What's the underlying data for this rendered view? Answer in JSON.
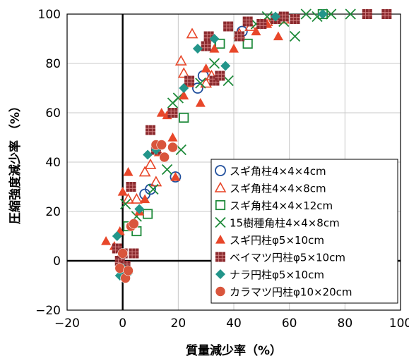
{
  "chart_data": {
    "type": "scatter",
    "xlabel": "質量減少率（%）",
    "ylabel": "圧縮強度減少率 （%）",
    "xlim": [
      -20,
      100
    ],
    "ylim": [
      -20,
      100
    ],
    "xticks": [
      -20,
      0,
      20,
      40,
      60,
      80,
      100
    ],
    "yticks": [
      -20,
      0,
      20,
      40,
      60,
      80,
      100
    ],
    "grid": true,
    "legend_position": "bottom-right",
    "series": [
      {
        "name": "スギ角柱4×4×4cm",
        "marker": "circle-open",
        "color": "#1f4e9c",
        "points": [
          [
            8,
            27
          ],
          [
            10,
            29
          ],
          [
            19,
            34
          ],
          [
            27,
            70
          ],
          [
            29,
            75
          ],
          [
            43,
            93
          ]
        ]
      },
      {
        "name": "スギ角柱4×4×8cm",
        "marker": "triangle-open",
        "color": "#e8472a",
        "points": [
          [
            2,
            25
          ],
          [
            5,
            25
          ],
          [
            8,
            36
          ],
          [
            10,
            39
          ],
          [
            12,
            32
          ],
          [
            21,
            81
          ],
          [
            22,
            76
          ],
          [
            25,
            92
          ],
          [
            30,
            72
          ],
          [
            32,
            75
          ],
          [
            42,
            92
          ],
          [
            46,
            95
          ],
          [
            52,
            97
          ],
          [
            58,
            98
          ]
        ]
      },
      {
        "name": "スギ角柱4×4×12cm",
        "marker": "square-open",
        "color": "#1e8a3a",
        "points": [
          [
            2,
            14
          ],
          [
            5,
            12
          ],
          [
            9,
            19
          ],
          [
            22,
            58
          ],
          [
            35,
            88
          ],
          [
            45,
            88
          ],
          [
            55,
            98
          ],
          [
            72,
            100
          ]
        ]
      },
      {
        "name": "15樹種角柱4×4×8cm",
        "marker": "x",
        "color": "#1e8a3a",
        "points": [
          [
            1,
            23
          ],
          [
            5,
            18
          ],
          [
            11,
            29
          ],
          [
            16,
            37
          ],
          [
            18,
            64
          ],
          [
            20,
            66
          ],
          [
            21,
            45
          ],
          [
            28,
            72
          ],
          [
            33,
            80
          ],
          [
            38,
            73
          ],
          [
            42,
            91
          ],
          [
            48,
            96
          ],
          [
            52,
            99
          ],
          [
            58,
            97
          ],
          [
            62,
            91
          ],
          [
            66,
            100
          ],
          [
            70,
            99
          ],
          [
            75,
            100
          ],
          [
            82,
            100
          ]
        ]
      },
      {
        "name": "スギ円柱φ5×10cm",
        "marker": "triangle-filled",
        "color": "#e8472a",
        "points": [
          [
            -6,
            8
          ],
          [
            -3,
            6
          ],
          [
            -1,
            12
          ],
          [
            0,
            28
          ],
          [
            2,
            36
          ],
          [
            6,
            20
          ],
          [
            8,
            25
          ],
          [
            13,
            44
          ],
          [
            14,
            60
          ],
          [
            16,
            59
          ],
          [
            18,
            50
          ],
          [
            19,
            34
          ],
          [
            22,
            67
          ],
          [
            24,
            72
          ],
          [
            28,
            64
          ],
          [
            30,
            78
          ],
          [
            33,
            86
          ],
          [
            40,
            86
          ],
          [
            48,
            93
          ],
          [
            52,
            96
          ],
          [
            56,
            91
          ]
        ]
      },
      {
        "name": "ベイマツ円柱φ5×10cm",
        "marker": "square-filled",
        "color": "#8b2a2e",
        "points": [
          [
            -2,
            5
          ],
          [
            -1,
            0
          ],
          [
            0,
            3
          ],
          [
            1,
            -2
          ],
          [
            3,
            30
          ],
          [
            4,
            3
          ],
          [
            10,
            53
          ],
          [
            12,
            45
          ],
          [
            18,
            60
          ],
          [
            24,
            73
          ],
          [
            30,
            87
          ],
          [
            31,
            91
          ],
          [
            33,
            73
          ],
          [
            35,
            75
          ],
          [
            38,
            95
          ],
          [
            42,
            91
          ],
          [
            45,
            97
          ],
          [
            50,
            96
          ],
          [
            55,
            98
          ],
          [
            58,
            99
          ],
          [
            62,
            98
          ],
          [
            88,
            100
          ],
          [
            95,
            100
          ]
        ]
      },
      {
        "name": "ナラ円柱φ5×10cm",
        "marker": "diamond-filled",
        "color": "#23958a",
        "points": [
          [
            -2,
            10
          ],
          [
            -1,
            -6
          ],
          [
            0,
            -3
          ],
          [
            2,
            -5
          ],
          [
            6,
            21
          ],
          [
            9,
            43
          ],
          [
            12,
            45
          ],
          [
            22,
            70
          ],
          [
            27,
            86
          ],
          [
            33,
            90
          ],
          [
            37,
            79
          ],
          [
            55,
            99
          ],
          [
            72,
            100
          ]
        ]
      },
      {
        "name": "カラマツ円柱φ10×20cm",
        "marker": "circle-filled",
        "color": "#d9553c",
        "points": [
          [
            -1,
            -3
          ],
          [
            0,
            3
          ],
          [
            1,
            -7
          ],
          [
            2,
            -4
          ],
          [
            3,
            14
          ],
          [
            4,
            15
          ],
          [
            12,
            47
          ],
          [
            14,
            47
          ],
          [
            15,
            42
          ],
          [
            18,
            46
          ]
        ]
      }
    ]
  }
}
